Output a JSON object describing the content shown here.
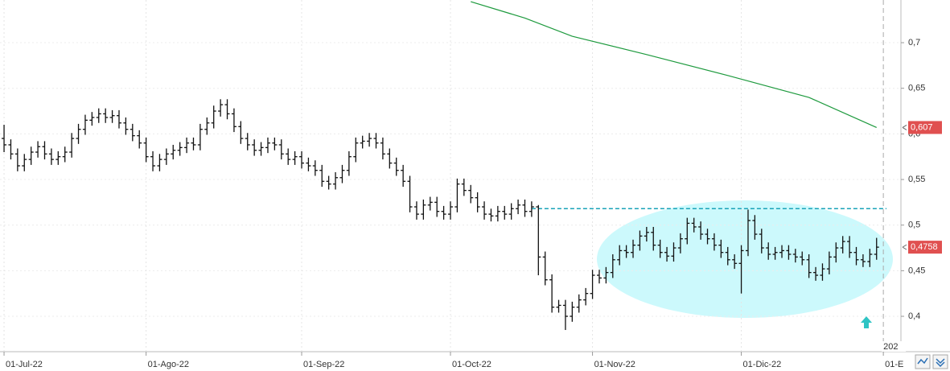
{
  "chart_data": {
    "type": "ohlc",
    "xlim": [
      -0.6,
      132.6
    ],
    "ylim": [
      0.3612,
      0.7468
    ],
    "grid": true,
    "bar_color": "#111111",
    "xticks": [
      {
        "value": 0,
        "label": "01-Jul-22"
      },
      {
        "value": 21,
        "label": "01-Ago-22"
      },
      {
        "value": 44,
        "label": "01-Sep-22"
      },
      {
        "value": 66,
        "label": "01-Oct-22"
      },
      {
        "value": 87,
        "label": "01-Nov-22"
      },
      {
        "value": 109,
        "label": "01-Dic-22"
      },
      {
        "value": 130,
        "label": "01-E"
      }
    ],
    "yticks": [
      {
        "value": 0.7,
        "label": "0,7"
      },
      {
        "value": 0.65,
        "label": "0,65"
      },
      {
        "value": 0.6,
        "label": "0,6"
      },
      {
        "value": 0.55,
        "label": "0,55"
      },
      {
        "value": 0.5,
        "label": "0,5"
      },
      {
        "value": 0.45,
        "label": "0,45"
      },
      {
        "value": 0.4,
        "label": "0,4"
      }
    ],
    "year_label": "202",
    "ohlc": [
      [
        0.595,
        0.61,
        0.58,
        0.588
      ],
      [
        0.588,
        0.594,
        0.572,
        0.578
      ],
      [
        0.578,
        0.584,
        0.559,
        0.565
      ],
      [
        0.565,
        0.578,
        0.559,
        0.572
      ],
      [
        0.572,
        0.586,
        0.566,
        0.58
      ],
      [
        0.58,
        0.592,
        0.574,
        0.586
      ],
      [
        0.586,
        0.592,
        0.572,
        0.578
      ],
      [
        0.578,
        0.584,
        0.566,
        0.572
      ],
      [
        0.572,
        0.581,
        0.566,
        0.575
      ],
      [
        0.575,
        0.586,
        0.569,
        0.58
      ],
      [
        0.58,
        0.601,
        0.574,
        0.595
      ],
      [
        0.595,
        0.611,
        0.589,
        0.605
      ],
      [
        0.605,
        0.621,
        0.599,
        0.615
      ],
      [
        0.615,
        0.624,
        0.609,
        0.618
      ],
      [
        0.618,
        0.628,
        0.612,
        0.622
      ],
      [
        0.622,
        0.628,
        0.612,
        0.618
      ],
      [
        0.618,
        0.626,
        0.612,
        0.62
      ],
      [
        0.62,
        0.626,
        0.606,
        0.612
      ],
      [
        0.612,
        0.618,
        0.599,
        0.605
      ],
      [
        0.605,
        0.611,
        0.592,
        0.598
      ],
      [
        0.598,
        0.604,
        0.584,
        0.59
      ],
      [
        0.59,
        0.596,
        0.569,
        0.575
      ],
      [
        0.575,
        0.581,
        0.559,
        0.565
      ],
      [
        0.565,
        0.578,
        0.559,
        0.572
      ],
      [
        0.572,
        0.584,
        0.566,
        0.578
      ],
      [
        0.578,
        0.588,
        0.572,
        0.582
      ],
      [
        0.582,
        0.591,
        0.576,
        0.585
      ],
      [
        0.585,
        0.596,
        0.579,
        0.59
      ],
      [
        0.59,
        0.596,
        0.582,
        0.588
      ],
      [
        0.588,
        0.611,
        0.582,
        0.605
      ],
      [
        0.605,
        0.618,
        0.599,
        0.612
      ],
      [
        0.612,
        0.631,
        0.606,
        0.625
      ],
      [
        0.625,
        0.638,
        0.619,
        0.632
      ],
      [
        0.632,
        0.638,
        0.616,
        0.622
      ],
      [
        0.622,
        0.628,
        0.602,
        0.608
      ],
      [
        0.608,
        0.614,
        0.589,
        0.595
      ],
      [
        0.595,
        0.601,
        0.582,
        0.588
      ],
      [
        0.588,
        0.594,
        0.576,
        0.582
      ],
      [
        0.582,
        0.591,
        0.576,
        0.585
      ],
      [
        0.585,
        0.596,
        0.579,
        0.59
      ],
      [
        0.59,
        0.596,
        0.582,
        0.588
      ],
      [
        0.588,
        0.594,
        0.572,
        0.578
      ],
      [
        0.578,
        0.584,
        0.566,
        0.572
      ],
      [
        0.572,
        0.581,
        0.566,
        0.575
      ],
      [
        0.575,
        0.581,
        0.562,
        0.568
      ],
      [
        0.568,
        0.574,
        0.559,
        0.565
      ],
      [
        0.565,
        0.571,
        0.554,
        0.56
      ],
      [
        0.56,
        0.566,
        0.542,
        0.548
      ],
      [
        0.548,
        0.554,
        0.539,
        0.545
      ],
      [
        0.545,
        0.558,
        0.539,
        0.552
      ],
      [
        0.552,
        0.566,
        0.546,
        0.56
      ],
      [
        0.56,
        0.581,
        0.554,
        0.575
      ],
      [
        0.575,
        0.596,
        0.569,
        0.59
      ],
      [
        0.59,
        0.598,
        0.584,
        0.592
      ],
      [
        0.592,
        0.601,
        0.586,
        0.595
      ],
      [
        0.595,
        0.601,
        0.584,
        0.59
      ],
      [
        0.59,
        0.596,
        0.572,
        0.578
      ],
      [
        0.578,
        0.584,
        0.562,
        0.568
      ],
      [
        0.568,
        0.574,
        0.554,
        0.56
      ],
      [
        0.56,
        0.566,
        0.542,
        0.548
      ],
      [
        0.548,
        0.554,
        0.514,
        0.52
      ],
      [
        0.52,
        0.526,
        0.506,
        0.512
      ],
      [
        0.512,
        0.528,
        0.506,
        0.522
      ],
      [
        0.522,
        0.531,
        0.516,
        0.525
      ],
      [
        0.525,
        0.531,
        0.509,
        0.515
      ],
      [
        0.515,
        0.521,
        0.506,
        0.512
      ],
      [
        0.512,
        0.526,
        0.506,
        0.52
      ],
      [
        0.52,
        0.551,
        0.514,
        0.545
      ],
      [
        0.545,
        0.551,
        0.532,
        0.538
      ],
      [
        0.538,
        0.544,
        0.524,
        0.53
      ],
      [
        0.53,
        0.536,
        0.514,
        0.52
      ],
      [
        0.52,
        0.526,
        0.506,
        0.512
      ],
      [
        0.512,
        0.518,
        0.504,
        0.51
      ],
      [
        0.51,
        0.521,
        0.504,
        0.515
      ],
      [
        0.515,
        0.521,
        0.506,
        0.512
      ],
      [
        0.512,
        0.524,
        0.506,
        0.518
      ],
      [
        0.518,
        0.528,
        0.512,
        0.522
      ],
      [
        0.522,
        0.528,
        0.509,
        0.515
      ],
      [
        0.515,
        0.526,
        0.509,
        0.52
      ],
      [
        0.52,
        0.522,
        0.445,
        0.465
      ],
      [
        0.465,
        0.471,
        0.434,
        0.44
      ],
      [
        0.44,
        0.446,
        0.404,
        0.41
      ],
      [
        0.41,
        0.418,
        0.404,
        0.412
      ],
      [
        0.412,
        0.418,
        0.385,
        0.4
      ],
      [
        0.4,
        0.416,
        0.394,
        0.41
      ],
      [
        0.41,
        0.424,
        0.404,
        0.418
      ],
      [
        0.418,
        0.431,
        0.412,
        0.425
      ],
      [
        0.425,
        0.451,
        0.419,
        0.445
      ],
      [
        0.445,
        0.451,
        0.436,
        0.442
      ],
      [
        0.442,
        0.454,
        0.436,
        0.448
      ],
      [
        0.448,
        0.468,
        0.442,
        0.462
      ],
      [
        0.462,
        0.478,
        0.456,
        0.472
      ],
      [
        0.472,
        0.478,
        0.464,
        0.47
      ],
      [
        0.47,
        0.484,
        0.464,
        0.478
      ],
      [
        0.478,
        0.494,
        0.472,
        0.488
      ],
      [
        0.488,
        0.498,
        0.482,
        0.492
      ],
      [
        0.492,
        0.498,
        0.472,
        0.478
      ],
      [
        0.478,
        0.484,
        0.464,
        0.47
      ],
      [
        0.47,
        0.476,
        0.46,
        0.466
      ],
      [
        0.466,
        0.481,
        0.46,
        0.475
      ],
      [
        0.475,
        0.491,
        0.469,
        0.485
      ],
      [
        0.485,
        0.508,
        0.479,
        0.502
      ],
      [
        0.502,
        0.508,
        0.492,
        0.498
      ],
      [
        0.498,
        0.504,
        0.484,
        0.49
      ],
      [
        0.49,
        0.496,
        0.479,
        0.485
      ],
      [
        0.485,
        0.491,
        0.472,
        0.478
      ],
      [
        0.478,
        0.484,
        0.464,
        0.47
      ],
      [
        0.47,
        0.476,
        0.456,
        0.462
      ],
      [
        0.462,
        0.468,
        0.452,
        0.458
      ],
      [
        0.458,
        0.478,
        0.425,
        0.472
      ],
      [
        0.472,
        0.517,
        0.466,
        0.505
      ],
      [
        0.505,
        0.511,
        0.484,
        0.49
      ],
      [
        0.49,
        0.496,
        0.469,
        0.475
      ],
      [
        0.475,
        0.481,
        0.462,
        0.468
      ],
      [
        0.468,
        0.476,
        0.462,
        0.47
      ],
      [
        0.47,
        0.478,
        0.464,
        0.472
      ],
      [
        0.472,
        0.478,
        0.462,
        0.468
      ],
      [
        0.468,
        0.474,
        0.459,
        0.465
      ],
      [
        0.465,
        0.471,
        0.456,
        0.462
      ],
      [
        0.462,
        0.468,
        0.442,
        0.448
      ],
      [
        0.448,
        0.454,
        0.439,
        0.445
      ],
      [
        0.445,
        0.458,
        0.439,
        0.452
      ],
      [
        0.452,
        0.471,
        0.446,
        0.465
      ],
      [
        0.465,
        0.481,
        0.459,
        0.475
      ],
      [
        0.475,
        0.488,
        0.469,
        0.482
      ],
      [
        0.482,
        0.488,
        0.464,
        0.47
      ],
      [
        0.47,
        0.476,
        0.456,
        0.462
      ],
      [
        0.462,
        0.468,
        0.454,
        0.46
      ],
      [
        0.46,
        0.474,
        0.454,
        0.468
      ],
      [
        0.468,
        0.486,
        0.462,
        0.4758
      ]
    ],
    "moving_average": {
      "color": "#1e9a3e",
      "x": [
        69,
        77,
        84,
        95,
        107,
        119,
        129
      ],
      "values": [
        0.745,
        0.727,
        0.707,
        0.687,
        0.664,
        0.64,
        0.607
      ]
    },
    "level_line": {
      "color": "#1aa3b8",
      "value": 0.518
    },
    "price_labels": [
      {
        "value": 0.607,
        "label": "0,607",
        "color": "#e05050"
      },
      {
        "value": 0.4758,
        "label": "0,4758",
        "color": "#e05050"
      }
    ]
  }
}
